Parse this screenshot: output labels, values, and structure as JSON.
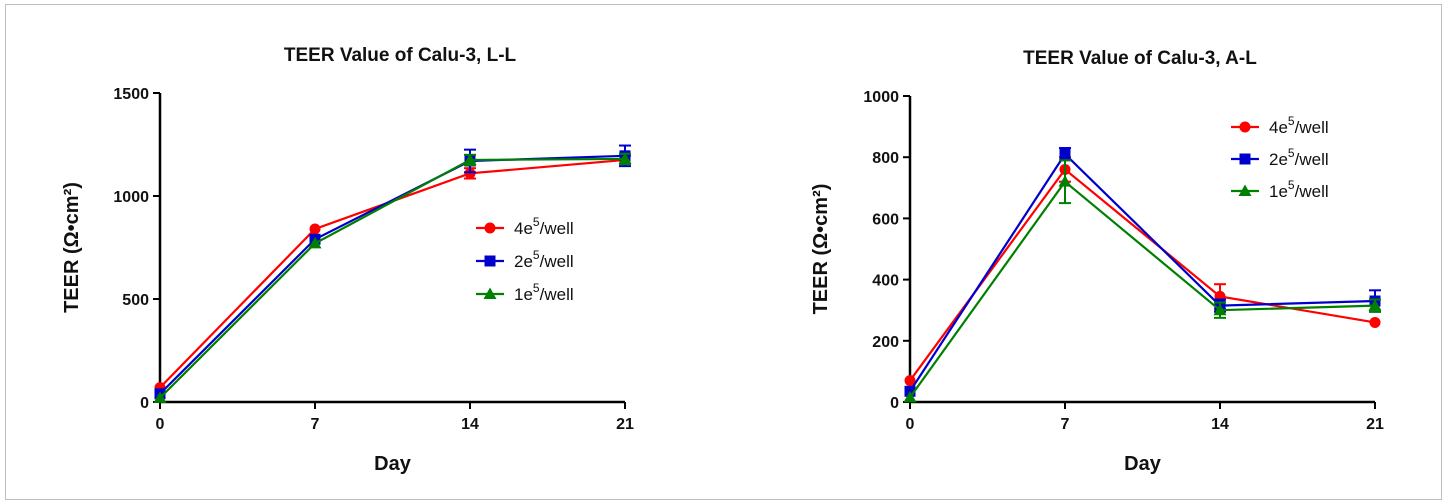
{
  "chart_data": [
    {
      "type": "line",
      "title": "TEER Value of Calu-3, L-L",
      "xlabel": "Day",
      "ylabel": "TEER (Ω•cm²)",
      "xlim": [
        0,
        21
      ],
      "ylim": [
        0,
        1500
      ],
      "x": [
        0,
        7,
        14,
        21
      ],
      "x_ticks": [
        "0",
        "7",
        "14",
        "21"
      ],
      "y_ticks": [
        0,
        500,
        1000,
        1500
      ],
      "legend_position": "middle-right",
      "grid": false,
      "series": [
        {
          "name": "4e5/well",
          "name_base": "4e",
          "name_sup": "5",
          "name_tail": "/well",
          "color": "#ff0000",
          "marker": "circle",
          "values": [
            70,
            840,
            1110,
            1175
          ],
          "errors": [
            0,
            0,
            25,
            20
          ]
        },
        {
          "name": "2e5/well",
          "name_base": "2e",
          "name_sup": "5",
          "name_tail": "/well",
          "color": "#0000cc",
          "marker": "square",
          "values": [
            40,
            790,
            1170,
            1195
          ],
          "errors": [
            0,
            0,
            55,
            50
          ]
        },
        {
          "name": "1e5/well",
          "name_base": "1e",
          "name_sup": "5",
          "name_tail": "/well",
          "color": "#008000",
          "marker": "triangle",
          "values": [
            20,
            770,
            1175,
            1180
          ],
          "errors": [
            0,
            0,
            25,
            25
          ]
        }
      ]
    },
    {
      "type": "line",
      "title": "TEER Value of Calu-3, A-L",
      "xlabel": "Day",
      "ylabel": "TEER (Ω•cm²)",
      "xlim": [
        0,
        21
      ],
      "ylim": [
        0,
        1000
      ],
      "x": [
        0,
        7,
        14,
        21
      ],
      "x_ticks": [
        "0",
        "7",
        "14",
        "21"
      ],
      "y_ticks": [
        0,
        200,
        400,
        600,
        800,
        1000
      ],
      "legend_position": "top-right",
      "grid": false,
      "series": [
        {
          "name": "4e5/well",
          "name_base": "4e",
          "name_sup": "5",
          "name_tail": "/well",
          "color": "#ff0000",
          "marker": "circle",
          "values": [
            70,
            760,
            345,
            260
          ],
          "errors": [
            0,
            40,
            40,
            0
          ]
        },
        {
          "name": "2e5/well",
          "name_base": "2e",
          "name_sup": "5",
          "name_tail": "/well",
          "color": "#0000cc",
          "marker": "square",
          "values": [
            35,
            810,
            315,
            330
          ],
          "errors": [
            0,
            20,
            20,
            35
          ]
        },
        {
          "name": "1e5/well",
          "name_base": "1e",
          "name_sup": "5",
          "name_tail": "/well",
          "color": "#008000",
          "marker": "triangle",
          "values": [
            15,
            720,
            300,
            315
          ],
          "errors": [
            0,
            70,
            25,
            20
          ]
        }
      ]
    }
  ]
}
